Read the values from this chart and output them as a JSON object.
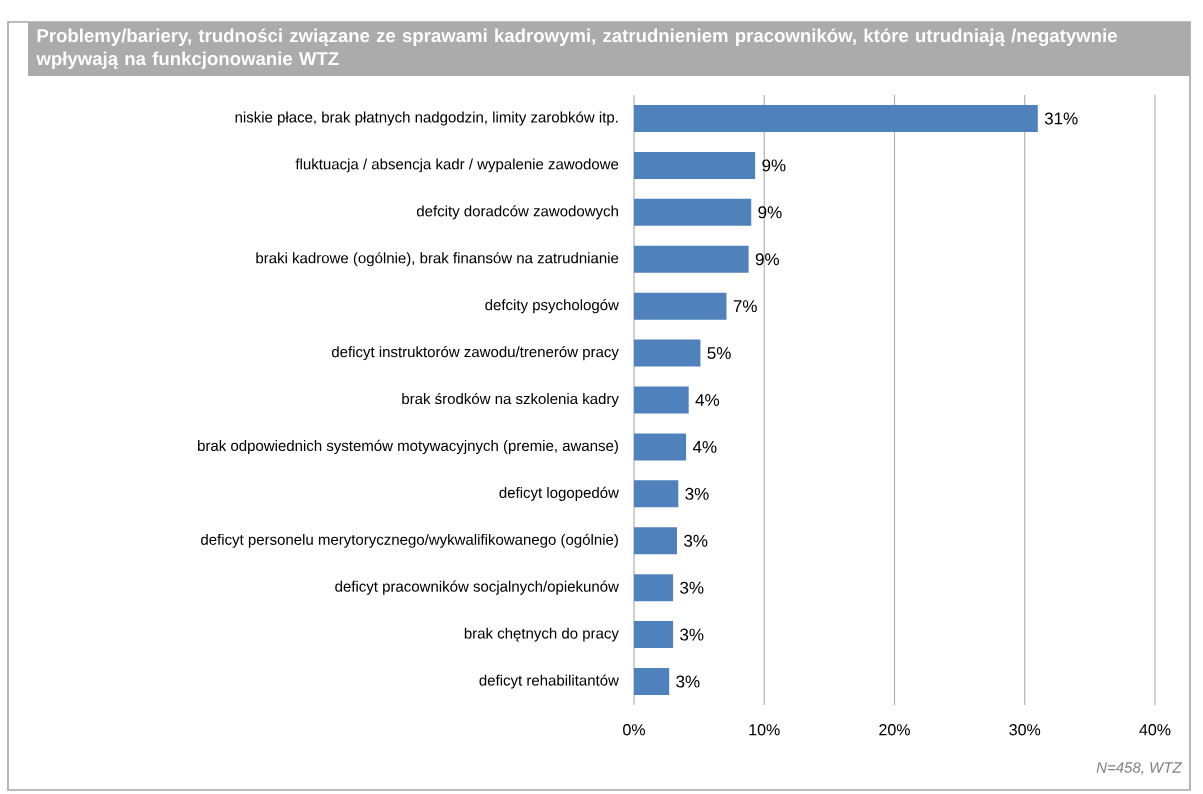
{
  "chart_data": {
    "type": "bar",
    "orientation": "horizontal",
    "title": "Problemy/bariery, trudności związane ze sprawami kadrowymi, zatrudnieniem pracowników, które utrudniają /negatywnie wpływają na funkcjonowanie WTZ",
    "categories": [
      "niskie płace, brak  płatnych nadgodzin, limity zarobków itp.",
      "fluktuacja / absencja kadr / wypalenie zawodowe",
      "defcity doradców zawodowych",
      "braki kadrowe (ogólnie), brak finansów na zatrudnianie",
      "defcity psychologów",
      "deficyt instruktorów zawodu/trenerów pracy",
      "brak środków na szkolenia kadry",
      "brak odpowiednich systemów motywacyjnych (premie, awanse)",
      "deficyt logopedów",
      "deficyt personelu merytorycznego/wykwalifikowanego  (ogólnie)",
      "deficyt pracowników socjalnych/opiekunów",
      "brak chętnych do pracy",
      "deficyt  rehabilitantów"
    ],
    "values": [
      31.0,
      9.3,
      9.0,
      8.8,
      7.1,
      5.1,
      4.2,
      4.0,
      3.4,
      3.3,
      3.0,
      3.0,
      2.7
    ],
    "value_labels": [
      "31%",
      "9%",
      "9%",
      "9%",
      "7%",
      "5%",
      "4%",
      "4%",
      "3%",
      "3%",
      "3%",
      "3%",
      "3%"
    ],
    "color": "#4f81bd",
    "xlim": [
      0,
      40
    ],
    "xticks": [
      {
        "value": 0,
        "label": "0%"
      },
      {
        "value": 10,
        "label": "10%"
      },
      {
        "value": 20,
        "label": "20%"
      },
      {
        "value": 30,
        "label": "30%"
      },
      {
        "value": 40,
        "label": "40%"
      }
    ],
    "grid": "x",
    "annotations": [
      "N=458, WTZ"
    ]
  }
}
